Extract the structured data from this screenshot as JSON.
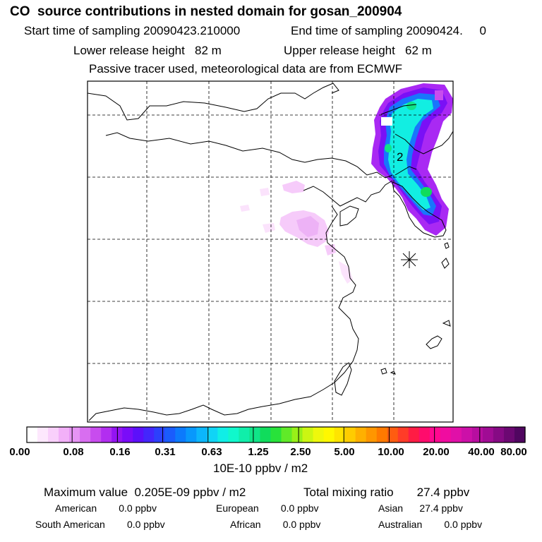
{
  "header": {
    "title": "CO  source contributions in nested domain for gosan_200904",
    "start_label": "Start time of sampling 20090423.210000",
    "end_label": "End time of sampling 20090424.     0",
    "lower_label": "Lower release height   82 m",
    "upper_label": "Upper release height   62 m",
    "note": "Passive tracer used, meteorological data are from ECMWF"
  },
  "map": {
    "marker_label": "2",
    "station_marker": "asterisk-station-icon"
  },
  "colorbar": {
    "colors": [
      "#ffffff",
      "#fde8fd",
      "#f9d0fb",
      "#f2b0f8",
      "#e694f4",
      "#d86ef0",
      "#c84cee",
      "#b22ef0",
      "#9414f2",
      "#7a0cf8",
      "#5c10fa",
      "#4426fc",
      "#2c40fc",
      "#1a5cfc",
      "#0c7afc",
      "#0898fc",
      "#0cb6fc",
      "#10d4f6",
      "#10eee6",
      "#10f8cc",
      "#10eeaa",
      "#10e488",
      "#10dc5c",
      "#28e23a",
      "#60ea28",
      "#98f018",
      "#ccf612",
      "#eef80c",
      "#fff800",
      "#ffe400",
      "#ffcc00",
      "#ffb000",
      "#ff9600",
      "#ff7a00",
      "#ff5c10",
      "#ff3c28",
      "#ff1c44",
      "#ff0c6c",
      "#ff0890",
      "#f00ca0",
      "#e010a8",
      "#cc10a8",
      "#b80ea0",
      "#a00c94",
      "#860a84",
      "#6c0872",
      "#500660"
    ],
    "labels": [
      "0.00",
      "0.08",
      "0.16",
      "0.31",
      "0.63",
      "1.25",
      "2.50",
      "5.00",
      "10.00",
      "20.00",
      "40.00",
      "80.00"
    ],
    "unit": "10E-10 ppbv / m2"
  },
  "footer": {
    "max_value": "Maximum value  0.205E-09 ppbv / m2",
    "total_mixing": "Total mixing ratio       27.4 ppbv",
    "american": "American        0.0 ppbv",
    "european": "European        0.0 ppbv",
    "asian": "Asian      27.4 ppbv",
    "south_american": "South American        0.0 ppbv",
    "african": "African        0.0 ppbv",
    "australian": "Australian        0.0 ppbv"
  }
}
